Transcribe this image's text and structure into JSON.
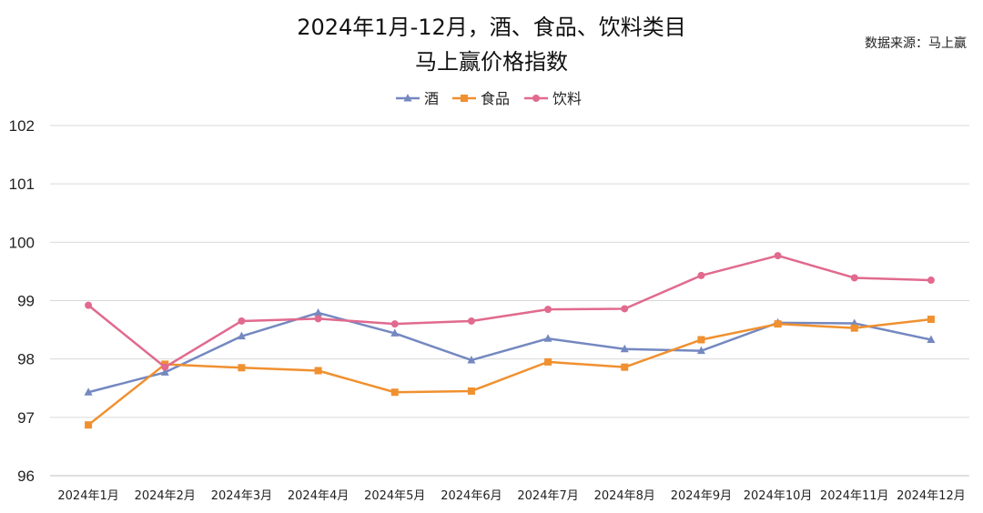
{
  "chart_data": {
    "type": "line",
    "title_line1": "2024年1月-12月，酒、食品、饮料类目",
    "title_line2": "马上赢价格指数",
    "source": "数据来源：马上赢",
    "categories": [
      "2024年1月",
      "2024年2月",
      "2024年3月",
      "2024年4月",
      "2024年5月",
      "2024年6月",
      "2024年7月",
      "2024年8月",
      "2024年9月",
      "2024年10月",
      "2024年11月",
      "2024年12月"
    ],
    "series": [
      {
        "name": "酒",
        "color": "#7488c0",
        "marker": "triangle",
        "values": [
          97.43,
          97.77,
          98.39,
          98.79,
          98.44,
          97.98,
          98.35,
          98.17,
          98.14,
          98.62,
          98.61,
          98.33
        ]
      },
      {
        "name": "食品",
        "color": "#f0902f",
        "marker": "square",
        "values": [
          96.87,
          97.91,
          97.85,
          97.8,
          97.43,
          97.45,
          97.95,
          97.86,
          98.33,
          98.6,
          98.53,
          98.68
        ]
      },
      {
        "name": "饮料",
        "color": "#e16a8e",
        "marker": "circle",
        "values": [
          98.92,
          97.86,
          98.65,
          98.69,
          98.6,
          98.65,
          98.85,
          98.86,
          99.43,
          99.77,
          99.39,
          99.35
        ]
      }
    ],
    "yticks": [
      "96",
      "97",
      "98",
      "99",
      "100",
      "101",
      "102"
    ],
    "ylim": [
      96,
      102
    ],
    "grid": true,
    "legend_position": "top-center"
  }
}
